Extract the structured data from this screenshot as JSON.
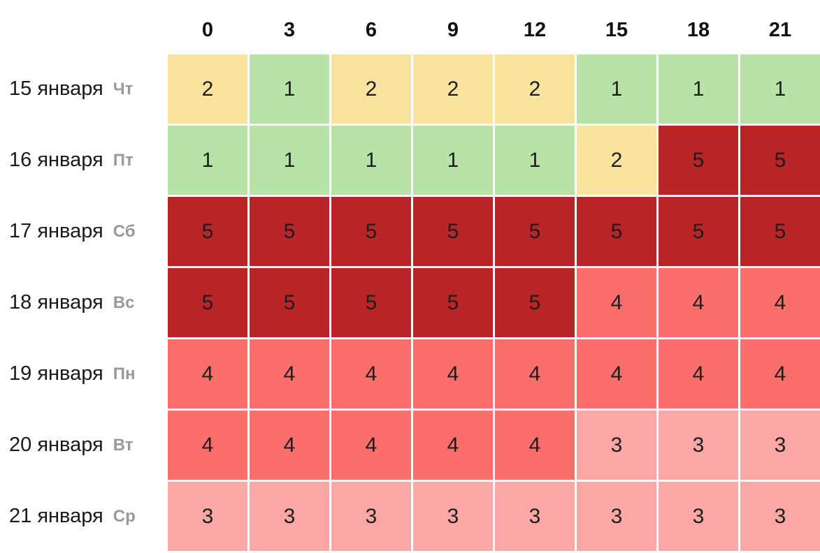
{
  "page": {
    "background": "#ffffff"
  },
  "chart_data": {
    "type": "heatmap",
    "description": "Forecast table of activity level (1-5) by date and 3-hour interval",
    "x_labels": [
      "0",
      "3",
      "6",
      "9",
      "12",
      "15",
      "18",
      "21"
    ],
    "rows": [
      {
        "date": "15 января",
        "weekday": "Чт",
        "values": [
          2,
          1,
          2,
          2,
          2,
          1,
          1,
          1
        ]
      },
      {
        "date": "16 января",
        "weekday": "Пт",
        "values": [
          1,
          1,
          1,
          1,
          1,
          2,
          5,
          5
        ]
      },
      {
        "date": "17 января",
        "weekday": "Сб",
        "values": [
          5,
          5,
          5,
          5,
          5,
          5,
          5,
          5
        ]
      },
      {
        "date": "18 января",
        "weekday": "Вс",
        "values": [
          5,
          5,
          5,
          5,
          5,
          4,
          4,
          4
        ]
      },
      {
        "date": "19 января",
        "weekday": "Пн",
        "values": [
          4,
          4,
          4,
          4,
          4,
          4,
          4,
          4
        ]
      },
      {
        "date": "20 января",
        "weekday": "Вт",
        "values": [
          4,
          4,
          4,
          4,
          4,
          3,
          3,
          3
        ]
      },
      {
        "date": "21 января",
        "weekday": "Ср",
        "values": [
          3,
          3,
          3,
          3,
          3,
          3,
          3,
          3
        ]
      }
    ],
    "value_range": [
      1,
      5
    ],
    "value_colors": {
      "1": "#b8e3a7",
      "2": "#f8e49c",
      "3": "#faa7a5",
      "4": "#fa6e6b",
      "5": "#b92427"
    },
    "layout": {
      "legend": "none",
      "grid_gap_color": "#ffffff",
      "cell_text_color": "#1d1d1d",
      "date_text_color": "#1a1a1a",
      "weekday_text_color": "#999999",
      "header_text_color": "#111111"
    }
  }
}
